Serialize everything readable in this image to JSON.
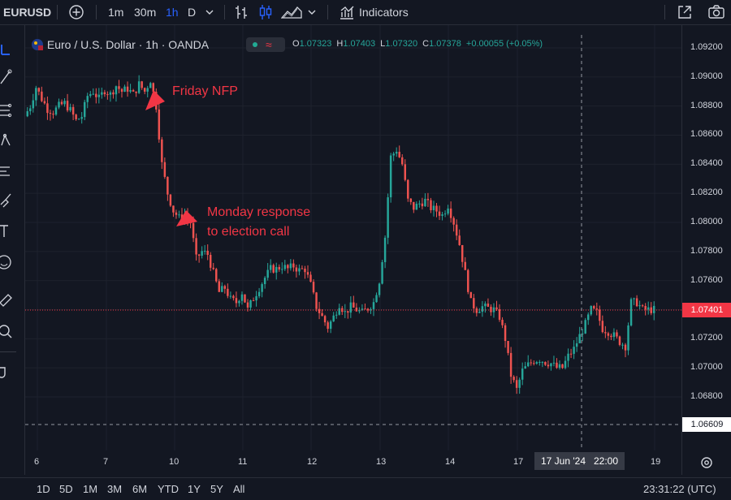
{
  "toolbar": {
    "symbol": "EURUSD",
    "intervals": [
      "1m",
      "30m",
      "1h",
      "D"
    ],
    "active_interval": "1h",
    "indicators_label": "Indicators"
  },
  "legend": {
    "title": "Euro / U.S. Dollar · 1h · OANDA",
    "open_label": "O",
    "open": "1.07323",
    "high_label": "H",
    "high": "1.07403",
    "low_label": "L",
    "low": "1.07320",
    "close_label": "C",
    "close": "1.07378",
    "change": "+0.00055 (+0.05%)"
  },
  "annotations": {
    "friday": "Friday NFP",
    "monday_line1": "Monday response",
    "monday_line2": "to election call"
  },
  "price_axis": {
    "ticks": [
      "1.09200",
      "1.09000",
      "1.08800",
      "1.08600",
      "1.08400",
      "1.08200",
      "1.08000",
      "1.07800",
      "1.07600",
      "1.07400",
      "1.07200",
      "1.07000",
      "1.06800"
    ],
    "current_price": "1.07401",
    "crosshair_price": "1.06609"
  },
  "time_axis": {
    "ticks": [
      "6",
      "7",
      "10",
      "11",
      "12",
      "13",
      "14",
      "17",
      "19"
    ],
    "crosshair_label": "17 Jun '24   22:00"
  },
  "ranges": [
    "1D",
    "5D",
    "1M",
    "3M",
    "6M",
    "YTD",
    "1Y",
    "5Y",
    "All"
  ],
  "clock": "23:31:22 (UTC)",
  "colors": {
    "up": "#26a69a",
    "down": "#ef5350",
    "background": "#131722",
    "annotation": "#f23645",
    "accent": "#2962ff"
  },
  "chart_data": {
    "type": "candlestick",
    "symbol": "EURUSD",
    "interval": "1h",
    "ylim": [
      1.0655,
      1.0925
    ],
    "x_labels": [
      "6",
      "7",
      "10",
      "11",
      "12",
      "13",
      "14",
      "17",
      "19"
    ],
    "close_path": [
      [
        0,
        1.0873
      ],
      [
        2,
        1.088
      ],
      [
        4,
        1.0893
      ],
      [
        6,
        1.0885
      ],
      [
        8,
        1.0878
      ],
      [
        10,
        1.0876
      ],
      [
        12,
        1.088
      ],
      [
        14,
        1.0882
      ],
      [
        16,
        1.0877
      ],
      [
        18,
        1.087
      ],
      [
        20,
        1.0873
      ],
      [
        22,
        1.0887
      ],
      [
        24,
        1.089
      ],
      [
        26,
        1.0885
      ],
      [
        28,
        1.0891
      ],
      [
        30,
        1.0888
      ],
      [
        32,
        1.0894
      ],
      [
        34,
        1.089
      ],
      [
        36,
        1.0892
      ],
      [
        38,
        1.0888
      ],
      [
        40,
        1.0895
      ],
      [
        42,
        1.089
      ],
      [
        44,
        1.0898
      ],
      [
        46,
        1.088
      ],
      [
        48,
        1.084
      ],
      [
        50,
        1.082
      ],
      [
        52,
        1.0808
      ],
      [
        54,
        1.0803
      ],
      [
        56,
        1.0805
      ],
      [
        58,
        1.08
      ],
      [
        60,
        1.0775
      ],
      [
        62,
        1.078
      ],
      [
        64,
        1.0778
      ],
      [
        66,
        1.0765
      ],
      [
        68,
        1.0752
      ],
      [
        70,
        1.0755
      ],
      [
        72,
        1.0747
      ],
      [
        74,
        1.0745
      ],
      [
        76,
        1.0752
      ],
      [
        78,
        1.074
      ],
      [
        80,
        1.0748
      ],
      [
        82,
        1.0755
      ],
      [
        84,
        1.0762
      ],
      [
        86,
        1.0768
      ],
      [
        88,
        1.0768
      ],
      [
        90,
        1.077
      ],
      [
        92,
        1.0768
      ],
      [
        94,
        1.077
      ],
      [
        96,
        1.0767
      ],
      [
        98,
        1.0768
      ],
      [
        100,
        1.0757
      ],
      [
        102,
        1.0742
      ],
      [
        104,
        1.0735
      ],
      [
        106,
        1.0728
      ],
      [
        108,
        1.0735
      ],
      [
        110,
        1.0744
      ],
      [
        112,
        1.0738
      ],
      [
        114,
        1.0742
      ],
      [
        116,
        1.074
      ],
      [
        118,
        1.0738
      ],
      [
        120,
        1.0741
      ],
      [
        122,
        1.0745
      ],
      [
        124,
        1.076
      ],
      [
        126,
        1.079
      ],
      [
        128,
        1.0845
      ],
      [
        130,
        1.085
      ],
      [
        132,
        1.084
      ],
      [
        134,
        1.0815
      ],
      [
        136,
        1.081
      ],
      [
        138,
        1.0813
      ],
      [
        140,
        1.0815
      ],
      [
        142,
        1.081
      ],
      [
        144,
        1.0808
      ],
      [
        146,
        1.0805
      ],
      [
        148,
        1.0812
      ],
      [
        150,
        1.08
      ],
      [
        152,
        1.0785
      ],
      [
        154,
        1.0765
      ],
      [
        156,
        1.0745
      ],
      [
        158,
        1.074
      ],
      [
        160,
        1.0742
      ],
      [
        162,
        1.0741
      ],
      [
        164,
        1.074
      ],
      [
        166,
        1.0735
      ],
      [
        168,
        1.072
      ],
      [
        170,
        1.0695
      ],
      [
        172,
        1.0685
      ],
      [
        174,
        1.0698
      ],
      [
        176,
        1.0702
      ],
      [
        178,
        1.0705
      ],
      [
        180,
        1.0706
      ],
      [
        182,
        1.0704
      ],
      [
        184,
        1.0703
      ],
      [
        186,
        1.07
      ],
      [
        188,
        1.07
      ],
      [
        190,
        1.0708
      ],
      [
        192,
        1.0713
      ],
      [
        194,
        1.0722
      ],
      [
        196,
        1.073
      ],
      [
        198,
        1.074
      ],
      [
        200,
        1.0738
      ],
      [
        202,
        1.0727
      ],
      [
        204,
        1.0725
      ],
      [
        206,
        1.0722
      ],
      [
        208,
        1.0718
      ],
      [
        210,
        1.0715
      ],
      [
        212,
        1.0745
      ],
      [
        214,
        1.0745
      ],
      [
        216,
        1.074
      ],
      [
        218,
        1.074
      ],
      [
        220,
        1.074
      ]
    ]
  }
}
